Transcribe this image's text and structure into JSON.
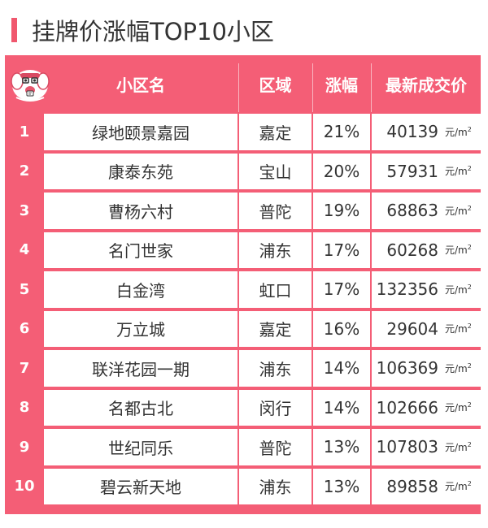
{
  "title": "挂牌价涨幅TOP10小区",
  "colors": {
    "accent": "#f0576e",
    "table_header": "#f45e76"
  },
  "header": {
    "mascot_icon": "cartoon-mascot-icon",
    "name": "小区名",
    "area": "区域",
    "pct": "涨幅",
    "price": "最新成交价"
  },
  "unit": "元/m",
  "unit_sup": "2",
  "rows": [
    {
      "rank": "1",
      "name": "绿地颐景嘉园",
      "area": "嘉定",
      "pct": "21%",
      "price": "40139"
    },
    {
      "rank": "2",
      "name": "康泰东苑",
      "area": "宝山",
      "pct": "20%",
      "price": "57931"
    },
    {
      "rank": "3",
      "name": "曹杨六村",
      "area": "普陀",
      "pct": "19%",
      "price": "68863"
    },
    {
      "rank": "4",
      "name": "名门世家",
      "area": "浦东",
      "pct": "17%",
      "price": "60268"
    },
    {
      "rank": "5",
      "name": "白金湾",
      "area": "虹口",
      "pct": "17%",
      "price": "132356"
    },
    {
      "rank": "6",
      "name": "万立城",
      "area": "嘉定",
      "pct": "16%",
      "price": "29604"
    },
    {
      "rank": "7",
      "name": "联洋花园一期",
      "area": "浦东",
      "pct": "14%",
      "price": "106369"
    },
    {
      "rank": "8",
      "name": "名都古北",
      "area": "闵行",
      "pct": "14%",
      "price": "102666"
    },
    {
      "rank": "9",
      "name": "世纪同乐",
      "area": "普陀",
      "pct": "13%",
      "price": "107803"
    },
    {
      "rank": "10",
      "name": "碧云新天地",
      "area": "浦东",
      "pct": "13%",
      "price": "89858"
    }
  ]
}
